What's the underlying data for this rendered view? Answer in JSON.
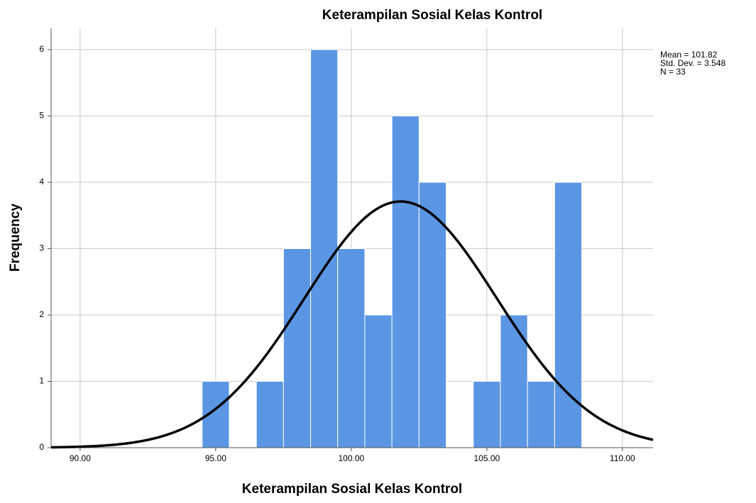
{
  "chart_data": {
    "type": "histogram",
    "title": "Keterampilan Sosial Kelas Kontrol",
    "x_label": "Keterampilan Sosial Kelas Kontrol",
    "y_label": "Frequency",
    "bins": [
      94.5,
      95.5,
      96.5,
      97.5,
      98.5,
      99.5,
      100.5,
      101.5,
      102.5,
      103.5,
      104.5,
      105.5,
      106.5,
      107.5,
      108.5
    ],
    "values": [
      1,
      0,
      1,
      3,
      6,
      3,
      2,
      5,
      4,
      0,
      1,
      2,
      1,
      4
    ],
    "color": "#5a96e3",
    "xlim": [
      88.93,
      111.13
    ],
    "xticks": [
      {
        "value": 90,
        "label": "90.00"
      },
      {
        "value": 95,
        "label": "95.00"
      },
      {
        "value": 100,
        "label": "100.00"
      },
      {
        "value": 105,
        "label": "105.00"
      },
      {
        "value": 110,
        "label": "110.00"
      }
    ],
    "ylim": [
      0,
      6.32
    ],
    "yticks": [
      0,
      1,
      2,
      3,
      4,
      5,
      6
    ],
    "grid": true,
    "normal_curve": {
      "mean": 101.82,
      "std_dev": 3.548,
      "n": 33,
      "color": "#000000"
    },
    "annotations": [
      "Mean = 101.82",
      "Std. Dev. = 3.548",
      "N = 33"
    ]
  }
}
